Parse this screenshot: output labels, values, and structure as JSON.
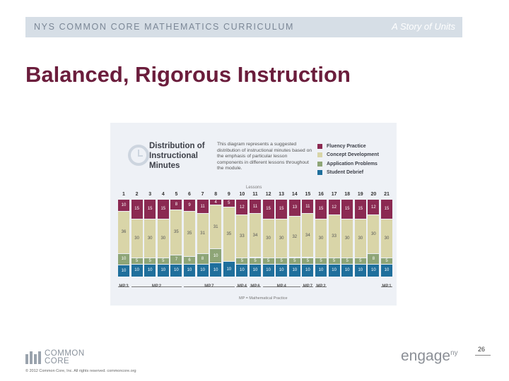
{
  "header": {
    "left_text": "NYS COMMON CORE MATHEMATICS CURRICULUM",
    "right_text": "A Story of Units"
  },
  "slide": {
    "title": "Balanced, Rigorous Instruction"
  },
  "figure": {
    "title": "Distribution of Instructional Minutes",
    "description": "This diagram represents a suggested distribution of instructional minutes based on the emphasis of particular lesson components in different lessons throughout the module.",
    "legend": [
      {
        "label": "Fluency Practice",
        "color": "#8b2a52"
      },
      {
        "label": "Concept Development",
        "color": "#d9d5a8"
      },
      {
        "label": "Application Problems",
        "color": "#8ea577"
      },
      {
        "label": "Student Debrief",
        "color": "#1f6f9c"
      }
    ],
    "lessons_label": "Lessons",
    "mp_caption": "MP = Mathematical Practice",
    "lessons": [
      {
        "num": "1",
        "fluency": "10",
        "concept": "36",
        "application": "10",
        "debrief": "10"
      },
      {
        "num": "2",
        "fluency": "15",
        "concept": "30",
        "application": "5",
        "debrief": "10"
      },
      {
        "num": "3",
        "fluency": "15",
        "concept": "30",
        "application": "5",
        "debrief": "10"
      },
      {
        "num": "4",
        "fluency": "15",
        "concept": "30",
        "application": "5",
        "debrief": "10"
      },
      {
        "num": "5",
        "fluency": "8",
        "concept": "35",
        "application": "7",
        "debrief": "10"
      },
      {
        "num": "6",
        "fluency": "9",
        "concept": "35",
        "application": "6",
        "debrief": "10"
      },
      {
        "num": "7",
        "fluency": "11",
        "concept": "31",
        "application": "8",
        "debrief": "10"
      },
      {
        "num": "8",
        "fluency": "4",
        "concept": "31",
        "application": "10",
        "debrief": "10"
      },
      {
        "num": "9",
        "fluency": "5",
        "concept": "35",
        "application": "0",
        "debrief": "10"
      },
      {
        "num": "10",
        "fluency": "12",
        "concept": "33",
        "application": "5",
        "debrief": "10"
      },
      {
        "num": "11",
        "fluency": "11",
        "concept": "34",
        "application": "5",
        "debrief": "10"
      },
      {
        "num": "12",
        "fluency": "15",
        "concept": "30",
        "application": "5",
        "debrief": "10"
      },
      {
        "num": "13",
        "fluency": "15",
        "concept": "30",
        "application": "5",
        "debrief": "10"
      },
      {
        "num": "14",
        "fluency": "13",
        "concept": "32",
        "application": "5",
        "debrief": "10"
      },
      {
        "num": "15",
        "fluency": "11",
        "concept": "34",
        "application": "5",
        "debrief": "10"
      },
      {
        "num": "16",
        "fluency": "15",
        "concept": "30",
        "application": "5",
        "debrief": "10"
      },
      {
        "num": "17",
        "fluency": "12",
        "concept": "33",
        "application": "5",
        "debrief": "10"
      },
      {
        "num": "18",
        "fluency": "15",
        "concept": "30",
        "application": "5",
        "debrief": "10"
      },
      {
        "num": "19",
        "fluency": "15",
        "concept": "30",
        "application": "5",
        "debrief": "10"
      },
      {
        "num": "20",
        "fluency": "12",
        "concept": "30",
        "application": "8",
        "debrief": "10"
      },
      {
        "num": "21",
        "fluency": "15",
        "concept": "30",
        "application": "5",
        "debrief": "10"
      }
    ],
    "mp_groups": [
      {
        "label": "MP.3",
        "from": 0,
        "to": 0
      },
      {
        "label": "MP.2",
        "from": 1,
        "to": 4
      },
      {
        "label": "MP.7",
        "from": 5,
        "to": 8
      },
      {
        "label": "MP.4",
        "from": 9,
        "to": 9
      },
      {
        "label": "MP.6",
        "from": 10,
        "to": 10
      },
      {
        "label": "MP.4",
        "from": 11,
        "to": 13
      },
      {
        "label": "MP.7",
        "from": 14,
        "to": 14
      },
      {
        "label": "MP.2",
        "from": 15,
        "to": 15
      },
      {
        "label": "MP.1",
        "from": 20,
        "to": 20
      }
    ]
  },
  "footer": {
    "logo_line1": "COMMON",
    "logo_line2": "CORE",
    "copyright": "© 2012 Common Core, Inc. All rights reserved. commoncore.org",
    "engage": "engage",
    "engage_sup": "ny",
    "page_number": "26"
  }
}
